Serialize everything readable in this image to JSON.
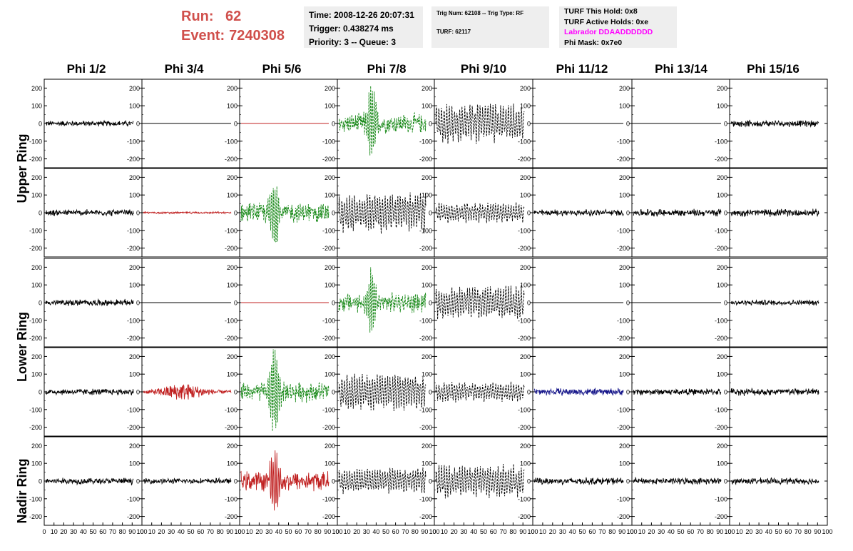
{
  "header": {
    "run_label": "Run:",
    "run_value": "62",
    "event_label": "Event:",
    "event_value": "7240308",
    "time_line": "Time: 2008-12-26 20:07:31",
    "trigger_line": "Trigger: 0.438274 ms",
    "priority_line": "Priority: 3 -- Queue: 3",
    "trig_num_line": "Trig Num: 62108 -- Trig Type: RF",
    "turf_line": "TURF: 62117",
    "turf_this_hold": "TURF This Hold: 0x8",
    "turf_active_holds": "TURF Active Holds: 0xe",
    "labrador": "Labrador DDAADDDDDD",
    "phi_mask": "Phi Mask: 0x7e0"
  },
  "columns": [
    "Phi 1/2",
    "Phi 3/4",
    "Phi 5/6",
    "Phi 7/8",
    "Phi 9/10",
    "Phi 11/12",
    "Phi 13/14",
    "Phi 15/16"
  ],
  "ring_labels": [
    "Upper Ring",
    "Lower Ring",
    "Nadir Ring"
  ],
  "colors": {
    "title_red": "#d0504c",
    "labrador": "#ff00ff",
    "trace_black": "#000000",
    "trace_red": "#c02020",
    "trace_green": "#1a8a1a",
    "trace_blue": "#1a1a8c",
    "info_bg": "#eeeeee"
  },
  "chart_data": {
    "type": "line",
    "x_ticks": [
      0,
      10,
      20,
      30,
      40,
      50,
      60,
      70,
      80,
      90,
      100
    ],
    "x_tick_label_text": "0 10 20 30 40 50 60 70 80 90 100",
    "y_ticks": [
      200,
      100,
      0,
      -100,
      -200
    ],
    "xlim": [
      0,
      100
    ],
    "ylim": [
      -250,
      250
    ],
    "rows": [
      {
        "ring": "Upper Ring",
        "traces": [
          {
            "style": "noise",
            "color": "black",
            "amp": 12
          },
          {
            "style": "flat",
            "color": "black",
            "amp": 0
          },
          {
            "style": "flat",
            "color": "red",
            "amp": 0
          },
          {
            "style": "pulse",
            "color": "green",
            "amp": 200,
            "dash": true
          },
          {
            "style": "dense",
            "color": "black",
            "amp": 120,
            "dash": true
          },
          {
            "style": "flat",
            "color": "black",
            "amp": 0
          },
          {
            "style": "flat",
            "color": "black",
            "amp": 0
          },
          {
            "style": "noise",
            "color": "black",
            "amp": 14
          }
        ]
      },
      {
        "ring": "Upper Ring",
        "traces": [
          {
            "style": "noise",
            "color": "black",
            "amp": 14
          },
          {
            "style": "noise",
            "color": "red",
            "amp": 4
          },
          {
            "style": "pulse",
            "color": "green",
            "amp": 180,
            "dash": true
          },
          {
            "style": "dense",
            "color": "black",
            "amp": 120,
            "dash": true
          },
          {
            "style": "dense",
            "color": "black",
            "amp": 60,
            "dash": true
          },
          {
            "style": "noise",
            "color": "black",
            "amp": 14
          },
          {
            "style": "noise",
            "color": "black",
            "amp": 16
          },
          {
            "style": "noise",
            "color": "black",
            "amp": 16
          }
        ]
      },
      {
        "ring": "Lower Ring",
        "traces": [
          {
            "style": "noise",
            "color": "black",
            "amp": 14
          },
          {
            "style": "flat",
            "color": "black",
            "amp": 0
          },
          {
            "style": "flat",
            "color": "red",
            "amp": 0
          },
          {
            "style": "pulse",
            "color": "green",
            "amp": 160,
            "dash": true
          },
          {
            "style": "dense",
            "color": "black",
            "amp": 100,
            "dash": true
          },
          {
            "style": "flat",
            "color": "black",
            "amp": 0
          },
          {
            "style": "flat",
            "color": "black",
            "amp": 0
          },
          {
            "style": "noise",
            "color": "black",
            "amp": 12
          }
        ]
      },
      {
        "ring": "Lower Ring",
        "traces": [
          {
            "style": "noise",
            "color": "black",
            "amp": 14
          },
          {
            "style": "burst",
            "color": "red",
            "amp": 40
          },
          {
            "style": "pulse",
            "color": "green",
            "amp": 240,
            "dash": true
          },
          {
            "style": "dense",
            "color": "black",
            "amp": 110,
            "dash": true
          },
          {
            "style": "dense",
            "color": "black",
            "amp": 60,
            "dash": true
          },
          {
            "style": "noise",
            "color": "blue",
            "amp": 16
          },
          {
            "style": "noise",
            "color": "black",
            "amp": 14
          },
          {
            "style": "noise",
            "color": "black",
            "amp": 16
          }
        ]
      },
      {
        "ring": "Nadir Ring",
        "traces": [
          {
            "style": "noise",
            "color": "black",
            "amp": 14
          },
          {
            "style": "noise",
            "color": "black",
            "amp": 12
          },
          {
            "style": "pulse",
            "color": "red",
            "amp": 170
          },
          {
            "style": "dense",
            "color": "black",
            "amp": 80,
            "dash": true
          },
          {
            "style": "dense",
            "color": "black",
            "amp": 100,
            "dash": true
          },
          {
            "style": "noise",
            "color": "black",
            "amp": 16
          },
          {
            "style": "noise",
            "color": "black",
            "amp": 14
          },
          {
            "style": "noise",
            "color": "black",
            "amp": 14
          }
        ]
      }
    ]
  }
}
